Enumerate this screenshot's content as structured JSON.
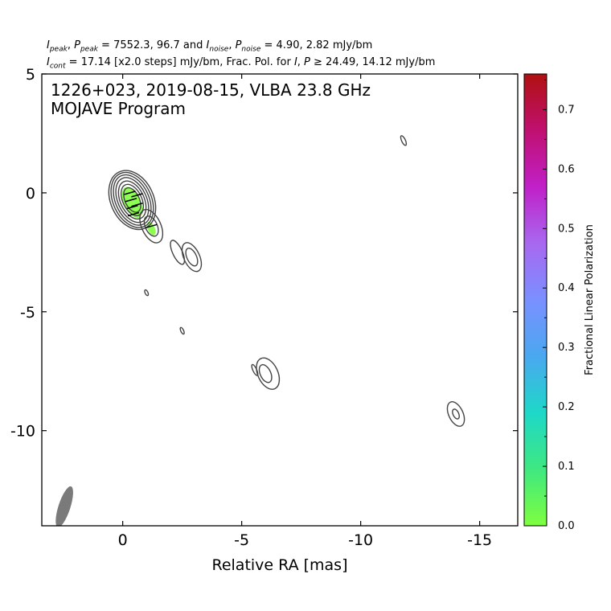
{
  "header": {
    "peak_values": "7552.3, 96.7",
    "noise_values": "4.90, 2.82 mJy/bm",
    "cont_text": " = 17.14 [x2.0 steps] mJy/bm, Frac. Pol. for ",
    "cont_thresholds": " ≥ 24.49, 14.12 mJy/bm"
  },
  "plot": {
    "source_line": "1226+023, 2019-08-15, VLBA 23.8 GHz",
    "program_line": "MOJAVE Program"
  },
  "chart_data": {
    "type": "contour",
    "title": "",
    "xlabel": "Relative RA [mas]",
    "ylabel": "",
    "xlim": [
      3.4,
      -16.6
    ],
    "ylim": [
      -14.0,
      5.0
    ],
    "x_ticks": [
      0,
      -5,
      -10,
      -15
    ],
    "x_tick_labels": [
      "0",
      "-5",
      "-10",
      "-15"
    ],
    "y_ticks": [
      5,
      0,
      -5,
      -10
    ],
    "y_tick_labels": [
      "5",
      "0",
      "-5",
      "-10"
    ],
    "contours": [
      {
        "name": "core-1",
        "cx": -0.4,
        "cy": -0.3,
        "rx": 0.3,
        "ry": 0.55
      },
      {
        "name": "core-2",
        "cx": -0.4,
        "cy": -0.3,
        "rx": 0.4,
        "ry": 0.7
      },
      {
        "name": "core-3",
        "cx": -0.4,
        "cy": -0.3,
        "rx": 0.5,
        "ry": 0.85
      },
      {
        "name": "core-4",
        "cx": -0.4,
        "cy": -0.3,
        "rx": 0.6,
        "ry": 1.0
      },
      {
        "name": "core-5",
        "cx": -0.4,
        "cy": -0.3,
        "rx": 0.7,
        "ry": 1.12
      },
      {
        "name": "core-6",
        "cx": -0.4,
        "cy": -0.3,
        "rx": 0.8,
        "ry": 1.22
      },
      {
        "name": "core-7",
        "cx": -0.4,
        "cy": -0.3,
        "rx": 0.9,
        "ry": 1.3
      },
      {
        "name": "jet-knot-1",
        "cx": -1.2,
        "cy": -1.4,
        "rx": 0.25,
        "ry": 0.45
      },
      {
        "name": "jet-knot-2",
        "cx": -1.2,
        "cy": -1.4,
        "rx": 0.4,
        "ry": 0.75
      },
      {
        "name": "jet-blob-1",
        "cx": -2.3,
        "cy": -2.5,
        "rx": 0.2,
        "ry": 0.55
      },
      {
        "name": "jet-blob-2",
        "cx": -2.9,
        "cy": -2.7,
        "rx": 0.2,
        "ry": 0.4
      },
      {
        "name": "jet-blob-3",
        "cx": -2.9,
        "cy": -2.7,
        "rx": 0.33,
        "ry": 0.65
      },
      {
        "name": "spot-1",
        "cx": -1.0,
        "cy": -4.2,
        "rx": 0.06,
        "ry": 0.13
      },
      {
        "name": "spot-2",
        "cx": -2.5,
        "cy": -5.8,
        "rx": 0.06,
        "ry": 0.15
      },
      {
        "name": "spot-3",
        "cx": -5.55,
        "cy": -7.45,
        "rx": 0.08,
        "ry": 0.25
      },
      {
        "name": "blob-4a",
        "cx": -6.0,
        "cy": -7.6,
        "rx": 0.22,
        "ry": 0.4
      },
      {
        "name": "blob-4b",
        "cx": -6.1,
        "cy": -7.6,
        "rx": 0.42,
        "ry": 0.7
      },
      {
        "name": "spot-4",
        "cx": -11.8,
        "cy": 2.2,
        "rx": 0.08,
        "ry": 0.22
      },
      {
        "name": "blob-5a",
        "cx": -14.0,
        "cy": -9.3,
        "rx": 0.12,
        "ry": 0.22
      },
      {
        "name": "blob-5b",
        "cx": -14.0,
        "cy": -9.3,
        "rx": 0.3,
        "ry": 0.55
      }
    ],
    "polarization_patches": [
      {
        "name": "pol-core",
        "cx": -0.4,
        "cy": -0.4,
        "rx": 0.35,
        "ry": 0.7,
        "frac_pol": 0.04
      },
      {
        "name": "pol-jet",
        "cx": -1.2,
        "cy": -1.5,
        "rx": 0.15,
        "ry": 0.3,
        "frac_pol": 0.03
      }
    ],
    "evpa_ticks": [
      {
        "x": -0.3,
        "y": 0.0
      },
      {
        "x": -0.35,
        "y": -0.3
      },
      {
        "x": -0.4,
        "y": -0.6
      },
      {
        "x": -0.45,
        "y": -0.9
      },
      {
        "x": -0.6,
        "y": -0.1
      },
      {
        "x": -0.6,
        "y": -0.5
      },
      {
        "x": -1.2,
        "y": -1.4
      }
    ],
    "beam": {
      "x": 2.45,
      "y": -13.2,
      "major": 0.9,
      "minor": 0.25
    },
    "colorbar": {
      "label": "Fractional Linear Polarization",
      "range": [
        0.0,
        0.76
      ],
      "ticks": [
        0.0,
        0.1,
        0.2,
        0.3,
        0.4,
        0.5,
        0.6,
        0.7
      ],
      "tick_labels": [
        "0.0",
        "0.1",
        "0.2",
        "0.3",
        "0.4",
        "0.5",
        "0.6",
        "0.7"
      ],
      "colors": [
        "#7fff3f",
        "#3fe880",
        "#1ed8c8",
        "#4aa8f0",
        "#7a90ff",
        "#a868f0",
        "#c020c8",
        "#c01070",
        "#b01010"
      ]
    }
  }
}
